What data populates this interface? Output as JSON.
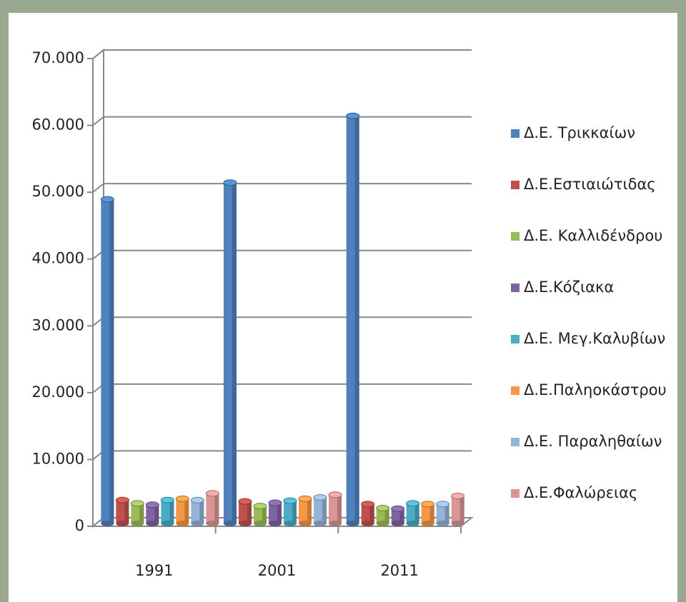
{
  "chart_data": {
    "type": "bar",
    "categories": [
      "1991",
      "2001",
      "2011"
    ],
    "series": [
      {
        "name": "Δ.Ε. Τρικκαίων",
        "color": "#4f81bd",
        "values": [
          48500,
          51000,
          61000
        ]
      },
      {
        "name": "Δ.Ε.Εστιαιώτιδας",
        "color": "#c0504d",
        "values": [
          3500,
          3300,
          2900
        ]
      },
      {
        "name": "Δ.Ε. Καλλιδένδρου",
        "color": "#9bbb59",
        "values": [
          3000,
          2600,
          2300
        ]
      },
      {
        "name": "Δ.Ε.Κόζιακα",
        "color": "#8064a2",
        "values": [
          2800,
          3100,
          2200
        ]
      },
      {
        "name": "Δ.Ε. Μεγ.Καλυβίων",
        "color": "#4bacc6",
        "values": [
          3500,
          3400,
          3000
        ]
      },
      {
        "name": "Δ.Ε.Παληοκάστρου",
        "color": "#f79646",
        "values": [
          3700,
          3700,
          2900
        ]
      },
      {
        "name": "Δ.Ε. Παραληθαίων",
        "color": "#95b3d7",
        "values": [
          3500,
          3900,
          2900
        ]
      },
      {
        "name": "Δ.Ε.Φαλώρειας",
        "color": "#d99694",
        "values": [
          4500,
          4300,
          4100
        ]
      }
    ],
    "ylim": [
      0,
      70000
    ],
    "yticks": [
      0,
      {
        "value": 10000,
        "label": "10.000"
      },
      {
        "value": 20000,
        "label": "20.000"
      },
      {
        "value": 30000,
        "label": "30.000"
      },
      {
        "value": 40000,
        "label": "40.000"
      },
      {
        "value": 50000,
        "label": "50.000"
      },
      {
        "value": 60000,
        "label": "60.000"
      },
      {
        "value": 70000,
        "label": "70.000"
      }
    ],
    "grid": true,
    "legend": "right"
  }
}
